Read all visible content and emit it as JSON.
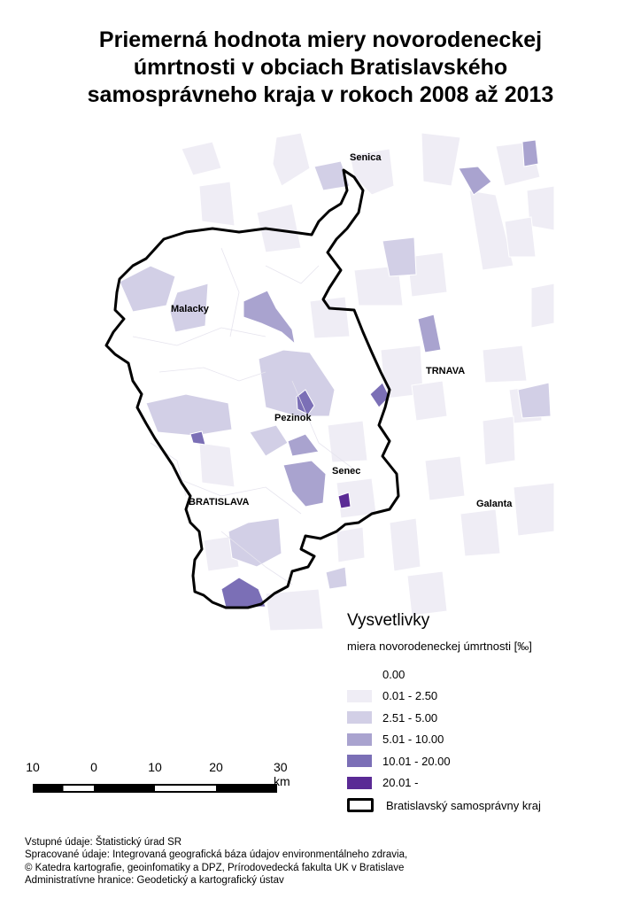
{
  "title": {
    "line1": "Priemerná hodnota miery novorodeneckej",
    "line2": "úmrtnosti v obciach Bratislavského",
    "line3": "samosprávneho kraja v rokoch 2008 až 2013"
  },
  "places": {
    "senica": "Senica",
    "malacky": "Malacky",
    "trnava": "TRNAVA",
    "pezinok": "Pezinok",
    "senec": "Senec",
    "bratislava": "BRATISLAVA",
    "galanta": "Galanta"
  },
  "legend": {
    "title": "Vysvetlivky",
    "subtitle": "miera novorodeneckej úmrtnosti [‰]",
    "classes": [
      {
        "label": "0.00",
        "color": "#ffffff"
      },
      {
        "label": "0.01 - 2.50",
        "color": "#efedf5"
      },
      {
        "label": "2.51 - 5.00",
        "color": "#d2cfe6"
      },
      {
        "label": "5.01 - 10.00",
        "color": "#a9a3cf"
      },
      {
        "label": "10.01 - 20.00",
        "color": "#7b6fb6"
      },
      {
        "label": "20.01 -",
        "color": "#5a2a95"
      }
    ],
    "boundary_label": "Bratislavský samosprávny kraj"
  },
  "scale": {
    "labels": [
      "10",
      "0",
      "10",
      "20",
      "30 km"
    ]
  },
  "credits": {
    "line1": "Vstupné údaje: Štatistický úrad SR",
    "line2": "Spracované údaje: Integrovaná geografická báza údajov environmentálneho zdravia,",
    "line3": "© Katedra kartografie, geoinfomatiky a DPZ, Prírodovedecká fakulta UK v Bratislave",
    "line4": "Administratívne hranice: Geodetický a kartografický ústav"
  }
}
